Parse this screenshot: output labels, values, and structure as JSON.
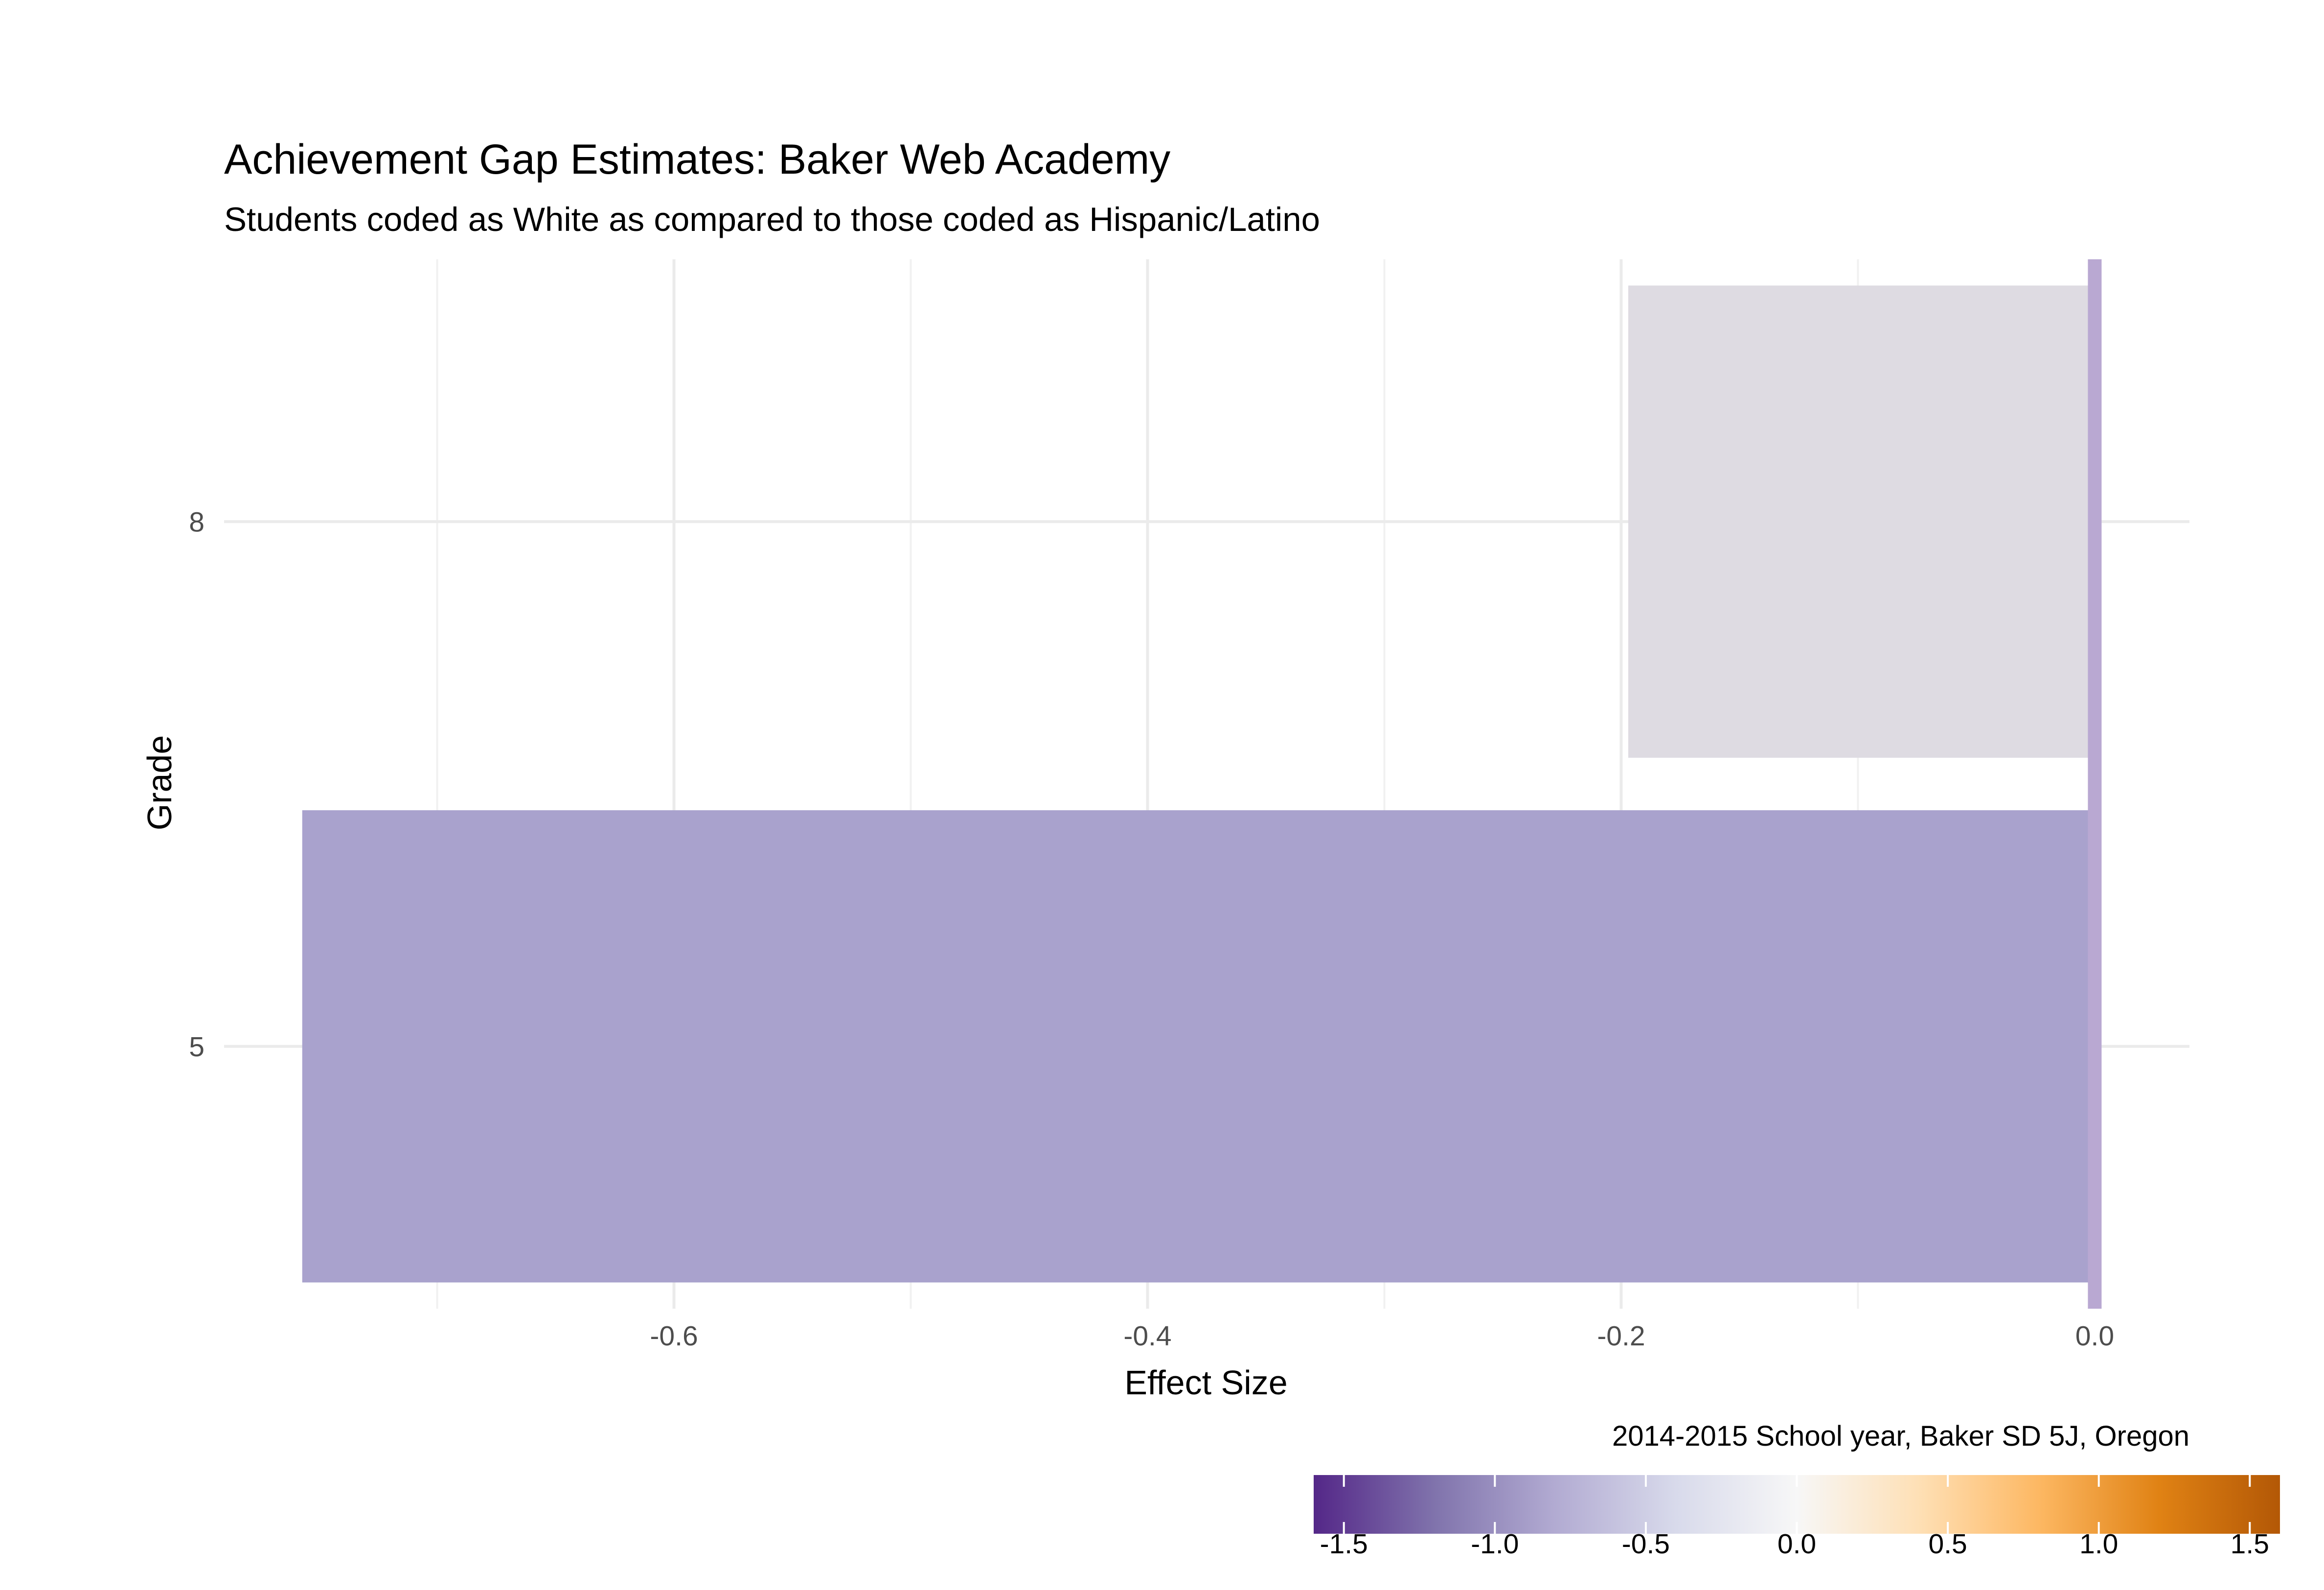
{
  "chart_data": {
    "type": "bar",
    "orientation": "horizontal",
    "title": "Achievement Gap Estimates: Baker Web Academy",
    "subtitle": "Students coded as White as compared to those coded as Hispanic/Latino",
    "caption": "2014-2015 School year, Baker SD 5J, Oregon",
    "xlabel": "Effect Size",
    "ylabel": "Grade",
    "categories": [
      "5",
      "8"
    ],
    "values": [
      -0.757,
      -0.197
    ],
    "bar_colors": [
      "#a9a2cd",
      "#dedbe2"
    ],
    "xlim": [
      -0.79,
      0.04
    ],
    "xticks": [
      -0.6,
      -0.4,
      -0.2,
      0.0
    ],
    "xtick_labels": [
      "-0.6",
      "-0.4",
      "-0.2",
      "0.0"
    ],
    "reference_line": {
      "x": 0.0,
      "color": "#b9a8d2"
    },
    "grid": true,
    "legend": {
      "type": "colorbar",
      "position": "bottom-right",
      "range": [
        -1.6,
        1.6
      ],
      "ticks": [
        -1.5,
        -1.0,
        -0.5,
        0.0,
        0.5,
        1.0,
        1.5
      ],
      "tick_labels": [
        "-1.5",
        "-1.0",
        "-0.5",
        "0.0",
        "0.5",
        "1.0",
        "1.5"
      ],
      "colors": [
        "#542788",
        "#8073ac",
        "#b2abd2",
        "#d8daeb",
        "#f7f7f7",
        "#fee0b6",
        "#fdb863",
        "#e08214",
        "#b35806"
      ]
    }
  }
}
